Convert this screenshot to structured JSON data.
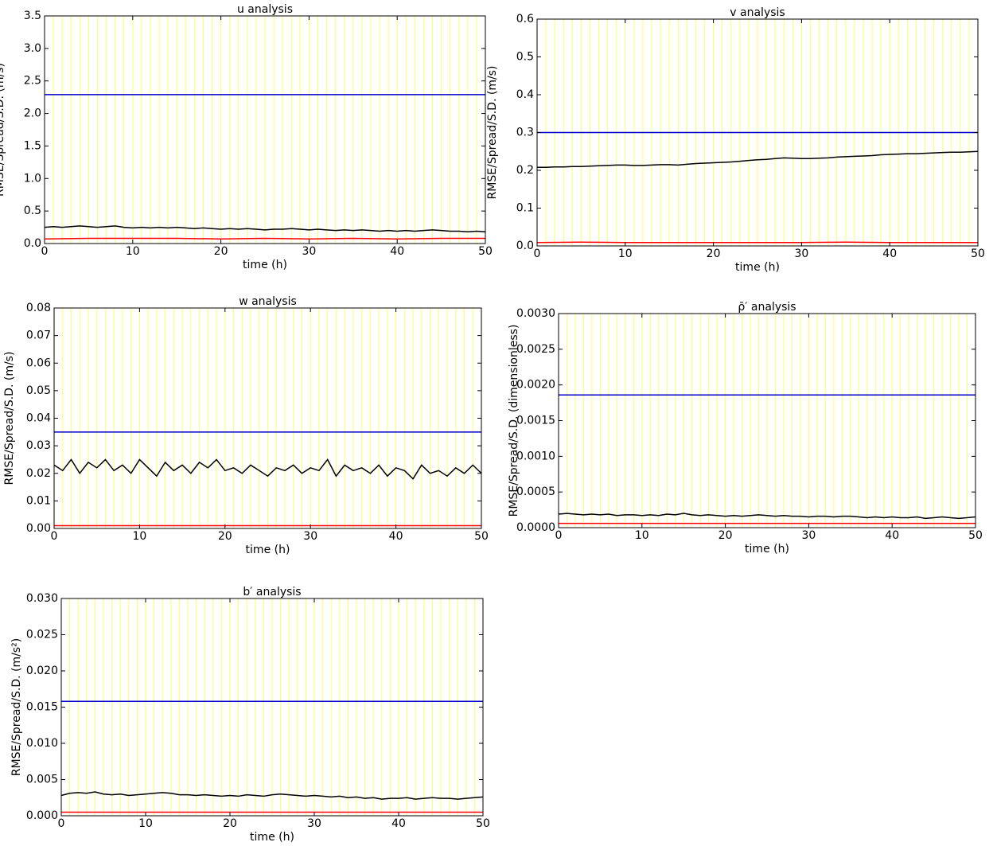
{
  "chart_data": [
    {
      "type": "line",
      "title": "u analysis",
      "xlabel": "time (h)",
      "ylabel": "RMSE/Spread/S.D. (m/s)",
      "xlim": [
        0,
        50
      ],
      "xticks": [
        0,
        10,
        20,
        30,
        40,
        50
      ],
      "ylim": [
        0,
        3.5
      ],
      "yticks": [
        {
          "value": 0,
          "label": "0.0"
        },
        0.5,
        {
          "value": 1,
          "label": "1.0"
        },
        1.5,
        {
          "value": 2,
          "label": "2.0"
        },
        2.5,
        {
          "value": 3,
          "label": "3.0"
        },
        3.5
      ],
      "vlines": [
        0,
        1,
        2,
        3,
        4,
        5,
        6,
        7,
        8,
        9,
        10,
        11,
        12,
        13,
        14,
        15,
        16,
        17,
        18,
        19,
        20,
        21,
        22,
        23,
        24,
        25,
        26,
        27,
        28,
        29,
        30,
        31,
        32,
        33,
        34,
        35,
        36,
        37,
        38,
        39,
        40,
        41,
        42,
        43,
        44,
        45,
        46,
        47,
        48,
        49,
        50
      ],
      "vline_color": "#ffff66",
      "series": [
        {
          "color": "#000000",
          "x": [
            0,
            1,
            2,
            3,
            4,
            5,
            6,
            7,
            8,
            9,
            10,
            11,
            12,
            13,
            14,
            15,
            16,
            17,
            18,
            19,
            20,
            21,
            22,
            23,
            24,
            25,
            26,
            27,
            28,
            29,
            30,
            31,
            32,
            33,
            34,
            35,
            36,
            37,
            38,
            39,
            40,
            41,
            42,
            43,
            44,
            45,
            46,
            47,
            48,
            49,
            50
          ],
          "values": [
            0.25,
            0.26,
            0.25,
            0.26,
            0.27,
            0.26,
            0.25,
            0.26,
            0.27,
            0.25,
            0.24,
            0.25,
            0.24,
            0.25,
            0.24,
            0.25,
            0.24,
            0.23,
            0.24,
            0.23,
            0.22,
            0.23,
            0.22,
            0.23,
            0.22,
            0.21,
            0.22,
            0.22,
            0.23,
            0.22,
            0.21,
            0.22,
            0.21,
            0.2,
            0.21,
            0.2,
            0.21,
            0.2,
            0.19,
            0.2,
            0.19,
            0.2,
            0.19,
            0.2,
            0.21,
            0.2,
            0.19,
            0.19,
            0.18,
            0.19,
            0.18
          ]
        },
        {
          "color": "#ff0000",
          "x": [
            0,
            5,
            10,
            15,
            20,
            25,
            30,
            35,
            40,
            45,
            50
          ],
          "values": [
            0.07,
            0.08,
            0.08,
            0.08,
            0.07,
            0.08,
            0.07,
            0.08,
            0.07,
            0.08,
            0.08
          ]
        },
        {
          "color": "#0000cc",
          "x": [
            0,
            50
          ],
          "values": [
            2.29,
            2.29
          ]
        }
      ]
    },
    {
      "type": "line",
      "title": "v analysis",
      "xlabel": "time (h)",
      "ylabel": "RMSE/Spread/S.D. (m/s)",
      "xlim": [
        0,
        50
      ],
      "xticks": [
        0,
        10,
        20,
        30,
        40,
        50
      ],
      "ylim": [
        0,
        0.6
      ],
      "yticks": [
        {
          "value": 0,
          "label": "0.0"
        },
        0.1,
        0.2,
        0.3,
        0.4,
        0.5,
        0.6
      ],
      "vlines": [
        0,
        1,
        2,
        3,
        4,
        5,
        6,
        7,
        8,
        9,
        10,
        11,
        12,
        13,
        14,
        15,
        16,
        17,
        18,
        19,
        20,
        21,
        22,
        23,
        24,
        25,
        26,
        27,
        28,
        29,
        30,
        31,
        32,
        33,
        34,
        35,
        36,
        37,
        38,
        39,
        40,
        41,
        42,
        43,
        44,
        45,
        46,
        47,
        48,
        49,
        50
      ],
      "vline_color": "#ffff66",
      "series": [
        {
          "color": "#000000",
          "x": [
            0,
            1,
            2,
            3,
            4,
            5,
            6,
            7,
            8,
            9,
            10,
            11,
            12,
            13,
            14,
            15,
            16,
            17,
            18,
            19,
            20,
            21,
            22,
            23,
            24,
            25,
            26,
            27,
            28,
            29,
            30,
            31,
            32,
            33,
            34,
            35,
            36,
            37,
            38,
            39,
            40,
            41,
            42,
            43,
            44,
            45,
            46,
            47,
            48,
            49,
            50
          ],
          "values": [
            0.208,
            0.208,
            0.209,
            0.209,
            0.21,
            0.21,
            0.211,
            0.212,
            0.213,
            0.214,
            0.214,
            0.213,
            0.213,
            0.214,
            0.215,
            0.215,
            0.214,
            0.216,
            0.218,
            0.219,
            0.22,
            0.221,
            0.222,
            0.224,
            0.226,
            0.228,
            0.229,
            0.231,
            0.233,
            0.232,
            0.231,
            0.231,
            0.232,
            0.233,
            0.235,
            0.236,
            0.237,
            0.238,
            0.239,
            0.241,
            0.242,
            0.243,
            0.244,
            0.244,
            0.245,
            0.246,
            0.247,
            0.248,
            0.248,
            0.249,
            0.25
          ]
        },
        {
          "color": "#ff0000",
          "x": [
            0,
            5,
            10,
            15,
            20,
            25,
            30,
            35,
            40,
            45,
            50
          ],
          "values": [
            0.009,
            0.01,
            0.009,
            0.009,
            0.009,
            0.009,
            0.009,
            0.01,
            0.009,
            0.009,
            0.009
          ]
        },
        {
          "color": "#0000cc",
          "x": [
            0,
            50
          ],
          "values": [
            0.3,
            0.3
          ]
        }
      ]
    },
    {
      "type": "line",
      "title": "w analysis",
      "xlabel": "time (h)",
      "ylabel": "RMSE/Spread/S.D. (m/s)",
      "xlim": [
        0,
        50
      ],
      "xticks": [
        0,
        10,
        20,
        30,
        40,
        50
      ],
      "ylim": [
        0,
        0.08
      ],
      "yticks": [
        {
          "value": 0,
          "label": "0.00"
        },
        0.01,
        0.02,
        0.03,
        0.04,
        0.05,
        0.06,
        0.07,
        0.08
      ],
      "vlines": [
        0,
        1,
        2,
        3,
        4,
        5,
        6,
        7,
        8,
        9,
        10,
        11,
        12,
        13,
        14,
        15,
        16,
        17,
        18,
        19,
        20,
        21,
        22,
        23,
        24,
        25,
        26,
        27,
        28,
        29,
        30,
        31,
        32,
        33,
        34,
        35,
        36,
        37,
        38,
        39,
        40,
        41,
        42,
        43,
        44,
        45,
        46,
        47,
        48,
        49,
        50
      ],
      "vline_color": "#ffff66",
      "series": [
        {
          "color": "#000000",
          "x": [
            0,
            1,
            2,
            3,
            4,
            5,
            6,
            7,
            8,
            9,
            10,
            11,
            12,
            13,
            14,
            15,
            16,
            17,
            18,
            19,
            20,
            21,
            22,
            23,
            24,
            25,
            26,
            27,
            28,
            29,
            30,
            31,
            32,
            33,
            34,
            35,
            36,
            37,
            38,
            39,
            40,
            41,
            42,
            43,
            44,
            45,
            46,
            47,
            48,
            49,
            50
          ],
          "values": [
            0.023,
            0.021,
            0.025,
            0.02,
            0.024,
            0.022,
            0.025,
            0.021,
            0.023,
            0.02,
            0.025,
            0.022,
            0.019,
            0.024,
            0.021,
            0.023,
            0.02,
            0.024,
            0.022,
            0.025,
            0.021,
            0.022,
            0.02,
            0.023,
            0.021,
            0.019,
            0.022,
            0.021,
            0.023,
            0.02,
            0.022,
            0.021,
            0.025,
            0.019,
            0.023,
            0.021,
            0.022,
            0.02,
            0.023,
            0.019,
            0.022,
            0.021,
            0.018,
            0.023,
            0.02,
            0.021,
            0.019,
            0.022,
            0.02,
            0.023,
            0.02
          ]
        },
        {
          "color": "#ff0000",
          "x": [
            0,
            5,
            10,
            15,
            20,
            25,
            30,
            35,
            40,
            45,
            50
          ],
          "values": [
            0.001,
            0.001,
            0.001,
            0.001,
            0.001,
            0.001,
            0.001,
            0.001,
            0.001,
            0.001,
            0.001
          ]
        },
        {
          "color": "#0000cc",
          "x": [
            0,
            50
          ],
          "values": [
            0.035,
            0.035
          ]
        }
      ]
    },
    {
      "type": "line",
      "title": "ρ̄′ analysis",
      "xlabel": "time (h)",
      "ylabel": "RMSE/Spread/S.D. (dimensionless)",
      "xlim": [
        0,
        50
      ],
      "xticks": [
        0,
        10,
        20,
        30,
        40,
        50
      ],
      "ylim": [
        0,
        0.003
      ],
      "yticks": [
        {
          "value": 0,
          "label": "0.0000"
        },
        {
          "value": 0.0005,
          "label": "0.0005"
        },
        {
          "value": 0.001,
          "label": "0.0010"
        },
        {
          "value": 0.0015,
          "label": "0.0015"
        },
        {
          "value": 0.002,
          "label": "0.0020"
        },
        {
          "value": 0.0025,
          "label": "0.0025"
        },
        {
          "value": 0.003,
          "label": "0.0030"
        }
      ],
      "vlines": [
        0,
        1,
        2,
        3,
        4,
        5,
        6,
        7,
        8,
        9,
        10,
        11,
        12,
        13,
        14,
        15,
        16,
        17,
        18,
        19,
        20,
        21,
        22,
        23,
        24,
        25,
        26,
        27,
        28,
        29,
        30,
        31,
        32,
        33,
        34,
        35,
        36,
        37,
        38,
        39,
        40,
        41,
        42,
        43,
        44,
        45,
        46,
        47,
        48,
        49,
        50
      ],
      "vline_color": "#ffff66",
      "series": [
        {
          "color": "#000000",
          "x": [
            0,
            1,
            2,
            3,
            4,
            5,
            6,
            7,
            8,
            9,
            10,
            11,
            12,
            13,
            14,
            15,
            16,
            17,
            18,
            19,
            20,
            21,
            22,
            23,
            24,
            25,
            26,
            27,
            28,
            29,
            30,
            31,
            32,
            33,
            34,
            35,
            36,
            37,
            38,
            39,
            40,
            41,
            42,
            43,
            44,
            45,
            46,
            47,
            48,
            49,
            50
          ],
          "values": [
            0.00019,
            0.0002,
            0.00019,
            0.00018,
            0.00019,
            0.00018,
            0.00019,
            0.00017,
            0.00018,
            0.00018,
            0.00017,
            0.00018,
            0.00017,
            0.00019,
            0.00018,
            0.0002,
            0.00018,
            0.00017,
            0.00018,
            0.00017,
            0.00016,
            0.00017,
            0.00016,
            0.00017,
            0.00018,
            0.00017,
            0.00016,
            0.00017,
            0.00016,
            0.00016,
            0.00015,
            0.00016,
            0.00016,
            0.00015,
            0.00016,
            0.00016,
            0.00015,
            0.00014,
            0.00015,
            0.00014,
            0.00015,
            0.00014,
            0.00014,
            0.00015,
            0.00013,
            0.00014,
            0.00015,
            0.00014,
            0.00013,
            0.00014,
            0.00015
          ]
        },
        {
          "color": "#ff0000",
          "x": [
            0,
            5,
            10,
            15,
            20,
            25,
            30,
            35,
            40,
            45,
            50
          ],
          "values": [
            6e-05,
            6e-05,
            6e-05,
            6e-05,
            6e-05,
            6e-05,
            6e-05,
            6e-05,
            6e-05,
            6e-05,
            6e-05
          ]
        },
        {
          "color": "#0000cc",
          "x": [
            0,
            50
          ],
          "values": [
            0.00186,
            0.00186
          ]
        }
      ]
    },
    {
      "type": "line",
      "title": "b′ analysis",
      "xlabel": "time (h)",
      "ylabel": "RMSE/Spread/S.D. (m/s²)",
      "xlim": [
        0,
        50
      ],
      "xticks": [
        0,
        10,
        20,
        30,
        40,
        50
      ],
      "ylim": [
        0,
        0.03
      ],
      "yticks": [
        {
          "value": 0,
          "label": "0.000"
        },
        0.005,
        {
          "value": 0.01,
          "label": "0.010"
        },
        0.015,
        {
          "value": 0.02,
          "label": "0.020"
        },
        0.025,
        {
          "value": 0.03,
          "label": "0.030"
        }
      ],
      "vlines": [
        0,
        1,
        2,
        3,
        4,
        5,
        6,
        7,
        8,
        9,
        10,
        11,
        12,
        13,
        14,
        15,
        16,
        17,
        18,
        19,
        20,
        21,
        22,
        23,
        24,
        25,
        26,
        27,
        28,
        29,
        30,
        31,
        32,
        33,
        34,
        35,
        36,
        37,
        38,
        39,
        40,
        41,
        42,
        43,
        44,
        45,
        46,
        47,
        48,
        49,
        50
      ],
      "vline_color": "#ffff66",
      "series": [
        {
          "color": "#000000",
          "x": [
            0,
            1,
            2,
            3,
            4,
            5,
            6,
            7,
            8,
            9,
            10,
            11,
            12,
            13,
            14,
            15,
            16,
            17,
            18,
            19,
            20,
            21,
            22,
            23,
            24,
            25,
            26,
            27,
            28,
            29,
            30,
            31,
            32,
            33,
            34,
            35,
            36,
            37,
            38,
            39,
            40,
            41,
            42,
            43,
            44,
            45,
            46,
            47,
            48,
            49,
            50
          ],
          "values": [
            0.0028,
            0.0031,
            0.0032,
            0.0031,
            0.0033,
            0.003,
            0.0029,
            0.003,
            0.0028,
            0.0029,
            0.003,
            0.0031,
            0.0032,
            0.0031,
            0.0029,
            0.0029,
            0.0028,
            0.0029,
            0.0028,
            0.0027,
            0.0028,
            0.0027,
            0.0029,
            0.0028,
            0.0027,
            0.0029,
            0.003,
            0.0029,
            0.0028,
            0.0027,
            0.0028,
            0.0027,
            0.0026,
            0.0027,
            0.0025,
            0.0026,
            0.0024,
            0.0025,
            0.0023,
            0.0024,
            0.0024,
            0.0025,
            0.0023,
            0.0024,
            0.0025,
            0.0024,
            0.0024,
            0.0023,
            0.0024,
            0.0025,
            0.0026
          ]
        },
        {
          "color": "#ff0000",
          "x": [
            0,
            5,
            10,
            15,
            20,
            25,
            30,
            35,
            40,
            45,
            50
          ],
          "values": [
            0.0005,
            0.0005,
            0.0005,
            0.0005,
            0.0005,
            0.0005,
            0.0005,
            0.0005,
            0.0005,
            0.0005,
            0.0005
          ]
        },
        {
          "color": "#0000cc",
          "x": [
            0,
            50
          ],
          "values": [
            0.0158,
            0.0158
          ]
        }
      ]
    }
  ]
}
